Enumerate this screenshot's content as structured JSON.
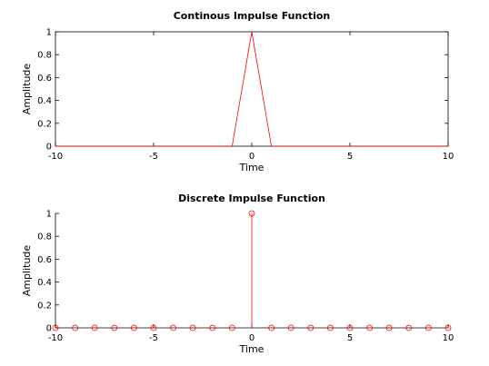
{
  "figure": {
    "background": "#ffffff",
    "axes_color": "#000000",
    "line_color": "#ff0000"
  },
  "chart_data": [
    {
      "type": "line",
      "title": "Continous Impulse Function",
      "xlabel": "Time",
      "ylabel": "Amplitude",
      "xlim": [
        -10,
        10
      ],
      "ylim": [
        0,
        1
      ],
      "xticks": [
        -10,
        -5,
        0,
        5,
        10
      ],
      "yticks": [
        0,
        0.2,
        0.4,
        0.6,
        0.8,
        1
      ],
      "xtick_labels": [
        "-10",
        "-5",
        "0",
        "5",
        "10"
      ],
      "ytick_labels": [
        "0",
        "0.2",
        "0.4",
        "0.6",
        "0.8",
        "1"
      ],
      "grid": false,
      "box": true,
      "series": [
        {
          "color": "#ff0000",
          "x": [
            -10,
            -9,
            -8,
            -7,
            -6,
            -5,
            -4,
            -3,
            -2,
            -1,
            0,
            1,
            2,
            3,
            4,
            5,
            6,
            7,
            8,
            9,
            10
          ],
          "y": [
            0,
            0,
            0,
            0,
            0,
            0,
            0,
            0,
            0,
            0,
            1,
            0,
            0,
            0,
            0,
            0,
            0,
            0,
            0,
            0,
            0
          ]
        }
      ]
    },
    {
      "type": "stem",
      "title": "Discrete Impulse Function",
      "xlabel": "Time",
      "ylabel": "Amplitude",
      "xlim": [
        -10,
        10
      ],
      "ylim": [
        0,
        1
      ],
      "xticks": [
        -10,
        -5,
        0,
        5,
        10
      ],
      "yticks": [
        0,
        0.2,
        0.4,
        0.6,
        0.8,
        1
      ],
      "xtick_labels": [
        "-10",
        "-5",
        "0",
        "5",
        "10"
      ],
      "ytick_labels": [
        "0",
        "0.2",
        "0.4",
        "0.6",
        "0.8",
        "1"
      ],
      "grid": false,
      "box": false,
      "marker": "circle",
      "series": [
        {
          "color": "#ff0000",
          "x": [
            -10,
            -9,
            -8,
            -7,
            -6,
            -5,
            -4,
            -3,
            -2,
            -1,
            0,
            1,
            2,
            3,
            4,
            5,
            6,
            7,
            8,
            9,
            10
          ],
          "y": [
            0,
            0,
            0,
            0,
            0,
            0,
            0,
            0,
            0,
            0,
            1,
            0,
            0,
            0,
            0,
            0,
            0,
            0,
            0,
            0,
            0
          ]
        }
      ]
    }
  ]
}
